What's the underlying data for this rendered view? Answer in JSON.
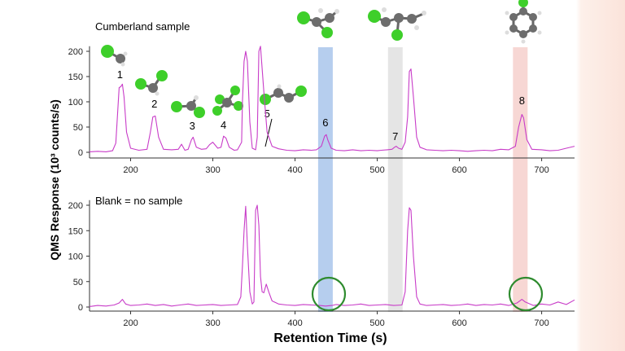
{
  "chart_data": {
    "type": "line",
    "xlabel": "Retention Time (s)",
    "ylabel": "QMS Response (10³ counts/s)",
    "xlim": [
      150,
      740
    ],
    "ylim": [
      -10,
      210
    ],
    "x_ticks": [
      200,
      300,
      400,
      500,
      600,
      700
    ],
    "y_ticks": [
      0,
      50,
      100,
      150,
      200
    ],
    "highlight_bands": [
      {
        "x": 437,
        "color": "#9dbde8"
      },
      {
        "x": 522,
        "color": "#dcdcdc"
      },
      {
        "x": 674,
        "color": "#f4c9c6"
      }
    ],
    "line_color": "#c83cc8",
    "panels": [
      {
        "label": "Cumberland sample",
        "peak_labels": [
          {
            "text": "1",
            "x": 187
          },
          {
            "text": "2",
            "x": 229
          },
          {
            "text": "3",
            "x": 275
          },
          {
            "text": "4",
            "x": 313
          },
          {
            "text": "5",
            "x": 366
          },
          {
            "text": "6",
            "x": 437
          },
          {
            "text": "7",
            "x": 522
          },
          {
            "text": "8",
            "x": 676
          }
        ],
        "series": [
          {
            "x": [
              150,
              160,
              170,
              178,
              182,
              186,
              188,
              190,
              192,
              195,
              200,
              210,
              220,
              224,
              227,
              230,
              234,
              240,
              250,
              258,
              262,
              266,
              270,
              274,
              276,
              280,
              286,
              292,
              296,
              300,
              306,
              310,
              313,
              316,
              320,
              326,
              330,
              335,
              336,
              338,
              340,
              342,
              345,
              348,
              352,
              354,
              356,
              358,
              362,
              366,
              372,
              380,
              390,
              400,
              410,
              420,
              426,
              432,
              436,
              438,
              440,
              444,
              450,
              460,
              470,
              480,
              490,
              500,
              505,
              512,
              518,
              521,
              523,
              526,
              530,
              534,
              537,
              539,
              541,
              544,
              548,
              552,
              560,
              570,
              580,
              590,
              600,
              610,
              620,
              630,
              640,
              650,
              660,
              668,
              672,
              676,
              678,
              682,
              688,
              700,
              710,
              720,
              730,
              740
            ],
            "values": [
              1,
              2,
              1,
              3,
              18,
              128,
              130,
              135,
              110,
              40,
              8,
              4,
              6,
              40,
              70,
              72,
              30,
              6,
              5,
              6,
              16,
              4,
              6,
              25,
              30,
              10,
              6,
              7,
              15,
              20,
              8,
              10,
              32,
              28,
              10,
              4,
              5,
              20,
              100,
              180,
              200,
              180,
              60,
              8,
              5,
              30,
              200,
              210,
              120,
              40,
              12,
              7,
              4,
              3,
              5,
              4,
              5,
              12,
              32,
              35,
              24,
              8,
              4,
              3,
              5,
              3,
              4,
              3,
              4,
              5,
              6,
              10,
              12,
              8,
              6,
              20,
              70,
              160,
              165,
              110,
              30,
              10,
              5,
              4,
              3,
              4,
              3,
              2,
              3,
              4,
              3,
              6,
              5,
              12,
              50,
              75,
              68,
              25,
              6,
              5,
              3,
              4,
              8,
              12
            ]
          }
        ]
      },
      {
        "label": "Blank = no sample",
        "peak_labels": [],
        "series": [
          {
            "x": [
              150,
              160,
              170,
              180,
              186,
              190,
              194,
              200,
              210,
              220,
              230,
              240,
              250,
              260,
              270,
              280,
              290,
              300,
              310,
              320,
              330,
              334,
              336,
              338,
              340,
              342,
              345,
              348,
              350,
              352,
              354,
              356,
              358,
              360,
              362,
              365,
              368,
              372,
              380,
              390,
              400,
              410,
              420,
              430,
              437,
              445,
              450,
              460,
              470,
              480,
              490,
              500,
              510,
              520,
              530,
              534,
              537,
              539,
              541,
              544,
              548,
              552,
              560,
              570,
              580,
              590,
              600,
              610,
              620,
              630,
              640,
              650,
              660,
              670,
              676,
              680,
              690,
              700,
              710,
              720,
              730,
              740
            ],
            "values": [
              1,
              3,
              2,
              4,
              8,
              15,
              6,
              3,
              4,
              6,
              3,
              5,
              2,
              4,
              6,
              3,
              4,
              5,
              3,
              4,
              5,
              20,
              80,
              150,
              198,
              120,
              30,
              6,
              10,
              190,
              200,
              160,
              60,
              30,
              28,
              45,
              30,
              12,
              6,
              4,
              3,
              5,
              4,
              3,
              2,
              3,
              5,
              3,
              4,
              6,
              3,
              4,
              5,
              3,
              4,
              30,
              150,
              195,
              190,
              100,
              20,
              6,
              3,
              4,
              5,
              3,
              4,
              6,
              3,
              5,
              4,
              6,
              3,
              8,
              15,
              10,
              3,
              6,
              4,
              10,
              5,
              14
            ]
          }
        ]
      }
    ]
  }
}
